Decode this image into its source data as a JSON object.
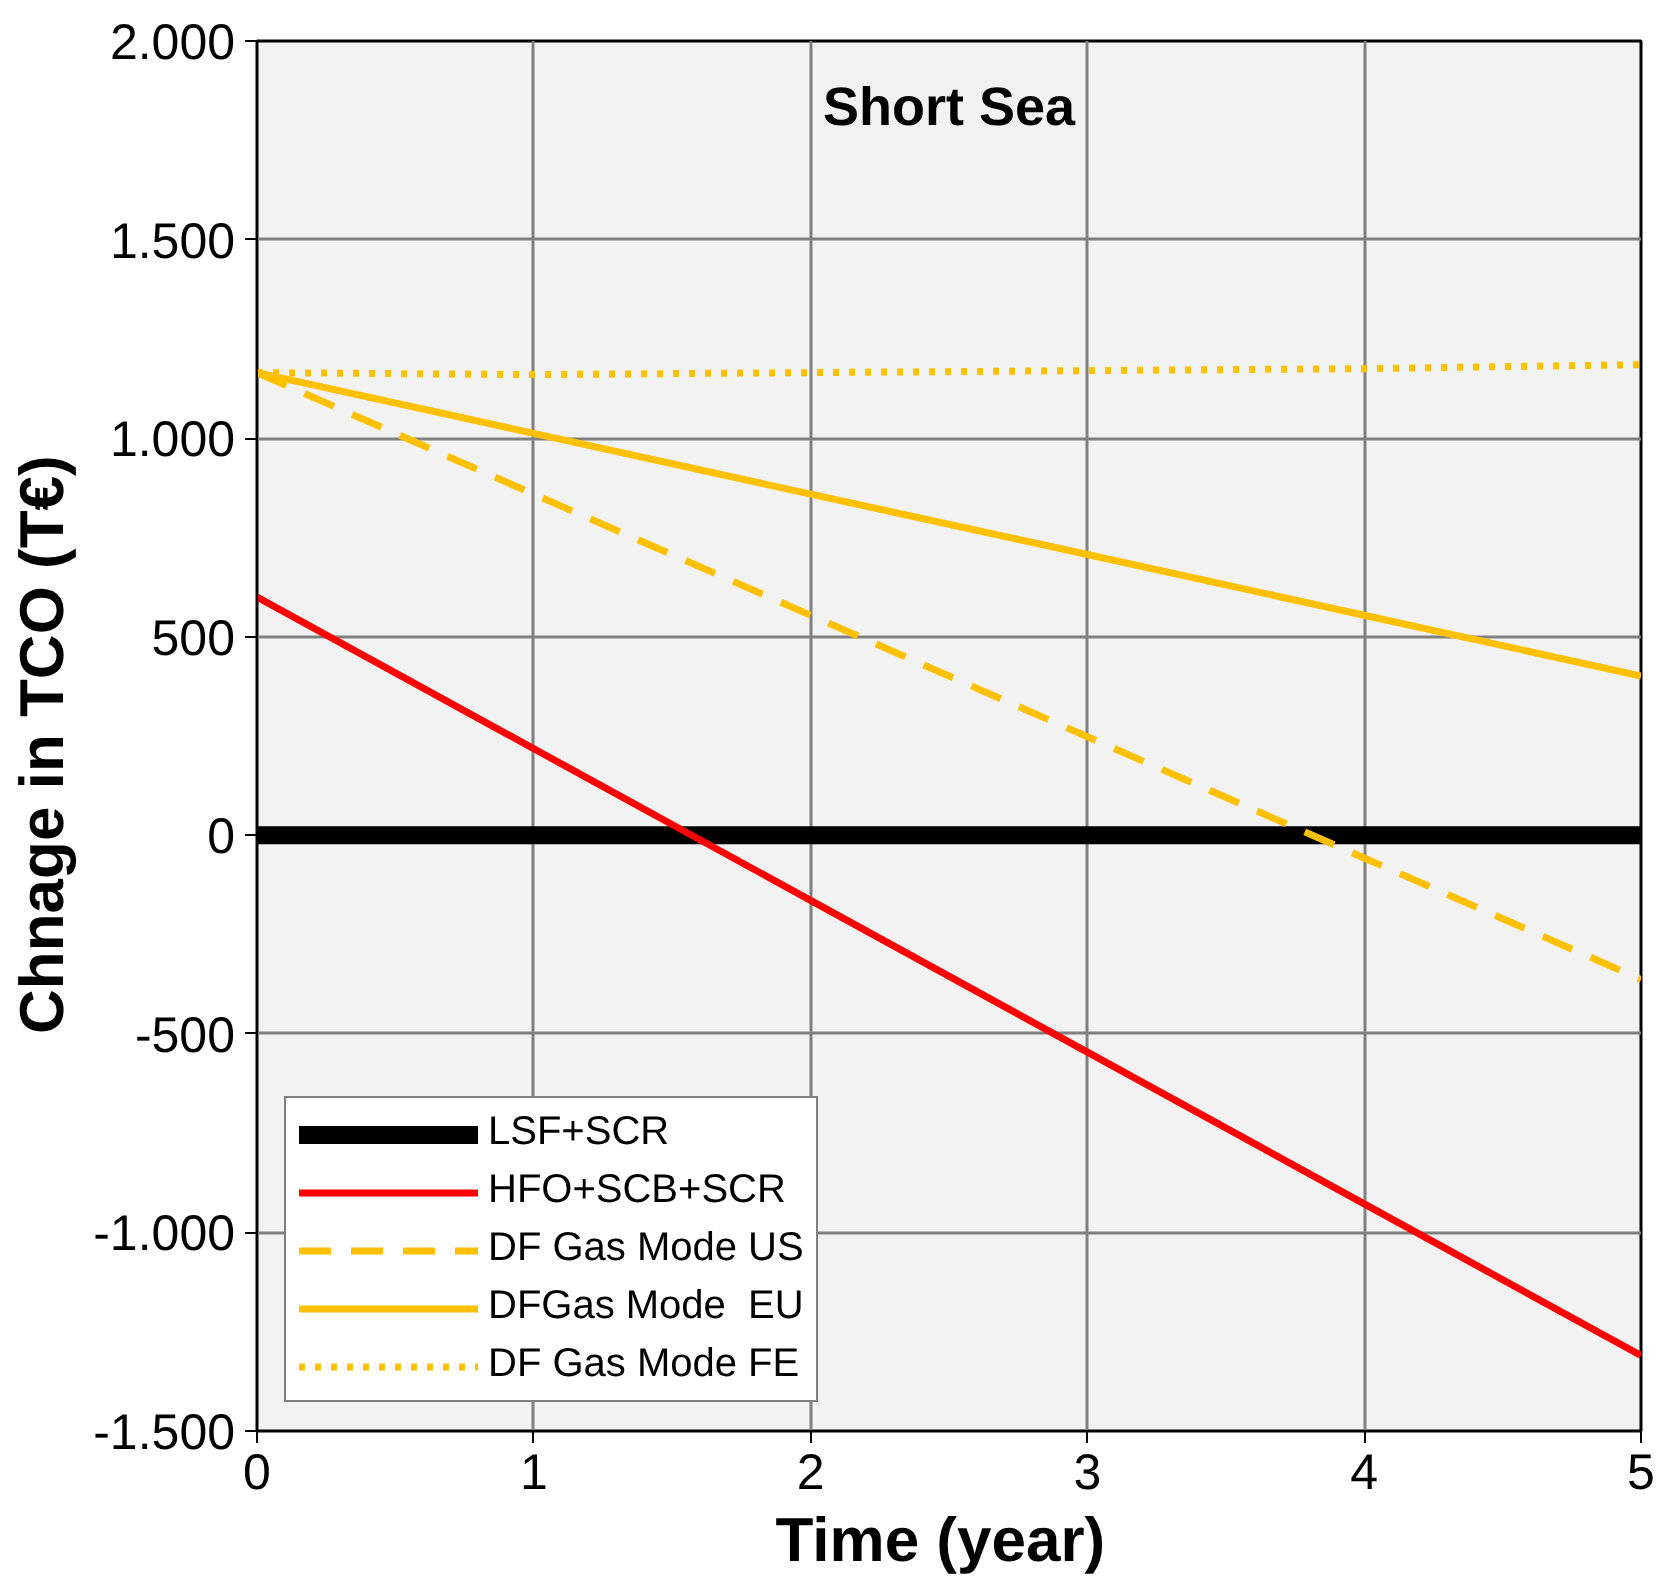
{
  "chart_data": {
    "type": "line",
    "title": "Short Sea",
    "xlabel": "Time  (year)",
    "ylabel": "Chnage in TCO  (T€)",
    "x": [
      0,
      1,
      2,
      3,
      4,
      5
    ],
    "series": [
      {
        "name": "LSF+SCR",
        "color": "#000000",
        "values": [
          0,
          0,
          0,
          0,
          0,
          0
        ],
        "line_style": "solid"
      },
      {
        "name": "HFO+SCB+SCR",
        "color": "#ff0000",
        "values": [
          600,
          218,
          -164,
          -546,
          -928,
          -1310
        ],
        "line_style": "solid"
      },
      {
        "name": "DF Gas Mode US",
        "color": "#ffc000",
        "values": [
          1165,
          859,
          554,
          248,
          -57,
          -363
        ],
        "line_style": "dashed"
      },
      {
        "name": "DFGas Mode  EU",
        "color": "#ffc000",
        "values": [
          1165,
          1012,
          859,
          707,
          554,
          401
        ],
        "line_style": "solid"
      },
      {
        "name": "DF Gas Mode FE",
        "color": "#ffc000",
        "values": [
          1165,
          1160,
          1165,
          1170,
          1175,
          1185
        ],
        "line_style": "dotted"
      }
    ],
    "xlim": [
      0,
      5
    ],
    "xticks": [
      0,
      1,
      2,
      3,
      4,
      5
    ],
    "ylim": [
      -1500,
      2000
    ],
    "yticks": [
      {
        "value": -1500,
        "label": "-1.500"
      },
      {
        "value": -1000,
        "label": "-1.000"
      },
      -500,
      0,
      500,
      {
        "value": 1000,
        "label": "1.000"
      },
      {
        "value": 1500,
        "label": "1.500"
      },
      {
        "value": 2000,
        "label": "2.000"
      }
    ],
    "grid": true,
    "legend": "bottom left",
    "marker": "none"
  }
}
